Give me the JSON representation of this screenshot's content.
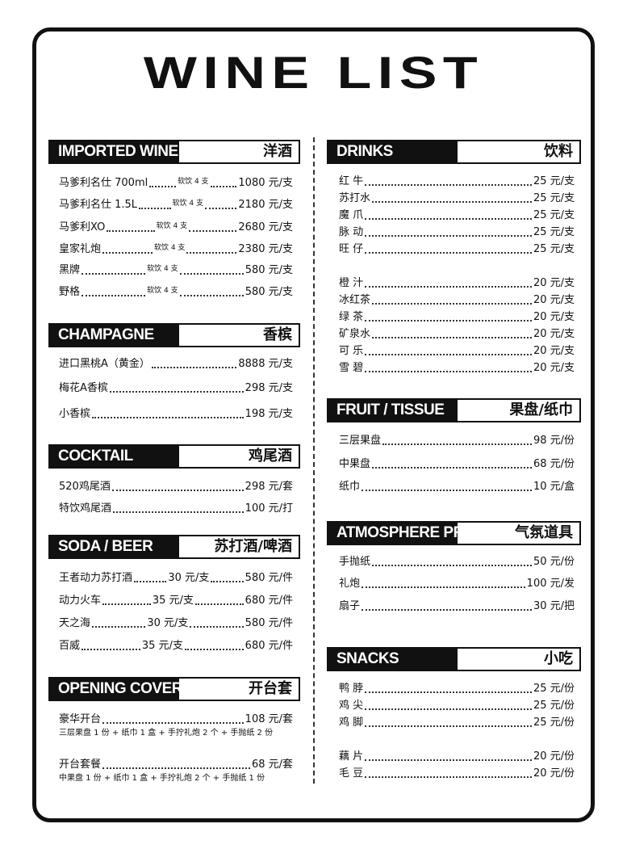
{
  "title": "WINE LIST",
  "left_column": {
    "sections": [
      {
        "title_en": "IMPORTED WINE",
        "title_zh": "洋酒",
        "items": [
          {
            "name": "马爹利名仕 700ml",
            "note": "软饮 4 支",
            "prices": [
              "1080 元/支"
            ]
          },
          {
            "name": "马爹利名仕 1.5L",
            "note": "软饮 4 支",
            "prices": [
              "2180 元/支"
            ]
          },
          {
            "name": "马爹利XO",
            "note": "软饮 4 支",
            "prices": [
              "2680 元/支"
            ]
          },
          {
            "name": "皇家礼炮",
            "note": "软饮 4 支",
            "prices": [
              "2380 元/支"
            ]
          },
          {
            "name": "黑牌",
            "note": "软饮 4 支",
            "prices": [
              "580 元/支"
            ]
          },
          {
            "name": "野格",
            "note": "软饮 4 支",
            "prices": [
              "580 元/支"
            ]
          }
        ]
      },
      {
        "title_en": "CHAMPAGNE",
        "title_zh": "香槟",
        "items": [
          {
            "name": "进口黑桃A（黄金）",
            "prices": [
              "8888 元/支"
            ]
          },
          {
            "name": "梅花A香槟",
            "prices": [
              "298 元/支"
            ]
          },
          {
            "name": "小香槟",
            "prices": [
              "198 元/支"
            ]
          }
        ]
      },
      {
        "title_en": "COCKTAIL",
        "title_zh": "鸡尾酒",
        "items": [
          {
            "name": "520鸡尾酒",
            "prices": [
              "298 元/套"
            ]
          },
          {
            "name": "特饮鸡尾酒",
            "prices": [
              "100 元/打"
            ]
          }
        ]
      },
      {
        "title_en": "SODA / BEER",
        "title_zh": "苏打酒/啤酒",
        "items": [
          {
            "name": "王者动力苏打酒",
            "prices": [
              "30 元/支",
              "580 元/件"
            ]
          },
          {
            "name": "动力火车",
            "prices": [
              "35 元/支",
              "680 元/件"
            ]
          },
          {
            "name": "天之海",
            "prices": [
              "30 元/支",
              "580 元/件"
            ]
          },
          {
            "name": "百威",
            "prices": [
              "35 元/支",
              "680 元/件"
            ]
          }
        ]
      },
      {
        "title_en": "OPENING COVER",
        "title_zh": "开台套",
        "items": [
          {
            "name": "豪华开台",
            "prices": [
              "108 元/套"
            ],
            "detail": "三层果盘 1 份 + 纸巾 1 盒 + 手拧礼炮 2 个 + 手抛纸 2 份"
          },
          {
            "name": "开台套餐",
            "prices": [
              "68 元/套"
            ],
            "detail": "中果盘 1 份 + 纸巾 1 盒 + 手拧礼炮 2 个 + 手抛纸 1 份"
          }
        ]
      }
    ]
  },
  "right_column": {
    "sections": [
      {
        "title_en": "DRINKS",
        "title_zh": "饮料",
        "items": [
          {
            "name": "红 牛",
            "prices": [
              "25 元/支"
            ]
          },
          {
            "name": "苏打水",
            "prices": [
              "25 元/支"
            ]
          },
          {
            "name": "魔 爪",
            "prices": [
              "25 元/支"
            ]
          },
          {
            "name": "脉 动",
            "prices": [
              "25 元/支"
            ]
          },
          {
            "name": "旺 仔",
            "prices": [
              "25 元/支"
            ]
          },
          {
            "name": "橙 汁",
            "prices": [
              "20 元/支"
            ]
          },
          {
            "name": "冰红茶",
            "prices": [
              "20 元/支"
            ]
          },
          {
            "name": "绿 茶",
            "prices": [
              "20 元/支"
            ]
          },
          {
            "name": "矿泉水",
            "prices": [
              "20 元/支"
            ]
          },
          {
            "name": "可 乐",
            "prices": [
              "20 元/支"
            ]
          },
          {
            "name": "雪 碧",
            "prices": [
              "20 元/支"
            ]
          }
        ]
      },
      {
        "title_en": "FRUIT / TISSUE",
        "title_zh": "果盘/纸巾",
        "items": [
          {
            "name": "三层果盘",
            "prices": [
              "98 元/份"
            ]
          },
          {
            "name": "中果盘",
            "prices": [
              "68 元/份"
            ]
          },
          {
            "name": "纸巾",
            "prices": [
              "10 元/盒"
            ]
          }
        ]
      },
      {
        "title_en": "ATMOSPHERE PROPS",
        "title_zh": "气氛道具",
        "items": [
          {
            "name": "手抛纸",
            "prices": [
              "50 元/份"
            ]
          },
          {
            "name": "礼炮",
            "prices": [
              "100 元/发"
            ]
          },
          {
            "name": "扇子",
            "prices": [
              "30 元/把"
            ]
          }
        ]
      },
      {
        "title_en": "SNACKS",
        "title_zh": "小吃",
        "items": [
          {
            "name": "鸭 脖",
            "prices": [
              "25 元/份"
            ]
          },
          {
            "name": "鸡 尖",
            "prices": [
              "25 元/份"
            ]
          },
          {
            "name": "鸡 脚",
            "prices": [
              "25 元/份"
            ]
          },
          {
            "name": "藕 片",
            "prices": [
              "20 元/份"
            ]
          },
          {
            "name": "毛 豆",
            "prices": [
              "20 元/份"
            ]
          }
        ]
      }
    ]
  }
}
